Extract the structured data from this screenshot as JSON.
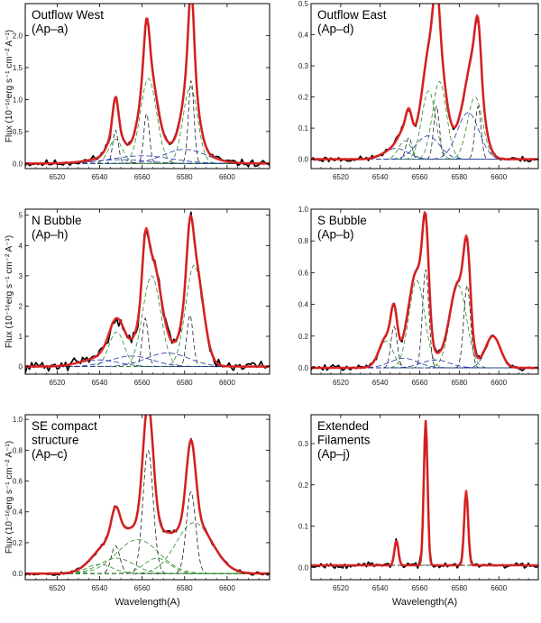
{
  "figure": {
    "xlabel": "Wavelength(A)",
    "ylabel": "Flux (10⁻¹⁶erg s⁻¹ cm⁻² A⁻¹)",
    "colors": {
      "observed": "#000000",
      "total_fit": "#e02020",
      "narrow": "#222222",
      "broad": "#2a8a2a",
      "wide": "#2233aa"
    }
  },
  "chart_data": [
    {
      "type": "line",
      "title_lines": [
        "Outflow West",
        "(Ap–a)"
      ],
      "xlim": [
        6505,
        6620
      ],
      "xticks": [
        6520,
        6540,
        6560,
        6580,
        6600
      ],
      "ylim": [
        -0.08,
        2.5
      ],
      "yticks": [
        0.0,
        0.5,
        1.0,
        1.5,
        2.0
      ],
      "ytick_labels": [
        "0.0",
        "0.5",
        "1.0",
        "1.5",
        "2.0"
      ],
      "show_ylabel": true,
      "show_xlabel": false,
      "noise": 0.015,
      "seed": 11,
      "baseline": 0.0,
      "components": [
        {
          "kind": "narrow",
          "c": 6547.5,
          "a": 0.52,
          "s": 1.3
        },
        {
          "kind": "narrow",
          "c": 6562.1,
          "a": 0.78,
          "s": 1.3
        },
        {
          "kind": "narrow",
          "c": 6583.1,
          "a": 1.3,
          "s": 1.3
        },
        {
          "kind": "broad",
          "c": 6547.5,
          "a": 0.38,
          "s": 3.2
        },
        {
          "kind": "broad",
          "c": 6563.0,
          "a": 1.33,
          "s": 3.8
        },
        {
          "kind": "broad",
          "c": 6582.7,
          "a": 1.2,
          "s": 3.4
        },
        {
          "kind": "wide",
          "c": 6580,
          "a": 0.22,
          "s": 10
        },
        {
          "kind": "wide",
          "c": 6560,
          "a": 0.12,
          "s": 14
        },
        {
          "kind": "wide",
          "c": 6550,
          "a": 0.06,
          "s": 12
        }
      ]
    },
    {
      "type": "line",
      "title_lines": [
        "Outflow East",
        "(Ap–d)"
      ],
      "xlim": [
        6505,
        6620
      ],
      "xticks": [
        6520,
        6540,
        6560,
        6580,
        6600
      ],
      "ylim": [
        -0.03,
        0.5
      ],
      "yticks": [
        0.0,
        0.1,
        0.2,
        0.3,
        0.4,
        0.5
      ],
      "ytick_labels": [
        "0.0",
        "0.1",
        "0.2",
        "0.3",
        "0.4",
        "0.5"
      ],
      "show_ylabel": false,
      "show_xlabel": false,
      "noise": 0.012,
      "seed": 23,
      "baseline": 0.0,
      "components": [
        {
          "kind": "narrow",
          "c": 6554.5,
          "a": 0.07,
          "s": 1.5
        },
        {
          "kind": "narrow",
          "c": 6568.5,
          "a": 0.17,
          "s": 1.5
        },
        {
          "kind": "narrow",
          "c": 6589.5,
          "a": 0.17,
          "s": 1.5
        },
        {
          "kind": "broad",
          "c": 6552.5,
          "a": 0.06,
          "s": 3.2
        },
        {
          "kind": "broad",
          "c": 6564.5,
          "a": 0.22,
          "s": 3.5
        },
        {
          "kind": "broad",
          "c": 6570.0,
          "a": 0.25,
          "s": 3.5
        },
        {
          "kind": "broad",
          "c": 6588.0,
          "a": 0.2,
          "s": 3.8
        },
        {
          "kind": "wide",
          "c": 6584.5,
          "a": 0.15,
          "s": 5.5
        },
        {
          "kind": "wide",
          "c": 6564.0,
          "a": 0.075,
          "s": 6
        },
        {
          "kind": "wide",
          "c": 6548.0,
          "a": 0.035,
          "s": 6
        }
      ]
    },
    {
      "type": "line",
      "title_lines": [
        "N Bubble",
        "(Ap–h)"
      ],
      "xlim": [
        6505,
        6620
      ],
      "xticks": [
        6520,
        6540,
        6560,
        6580,
        6600
      ],
      "ylim": [
        -0.25,
        5.2
      ],
      "yticks": [
        0,
        1,
        2,
        3,
        4,
        5
      ],
      "ytick_labels": [
        "0",
        "1",
        "2",
        "3",
        "4",
        "5"
      ],
      "show_ylabel": true,
      "show_xlabel": false,
      "noise": 0.025,
      "seed": 31,
      "baseline": 0.0,
      "components": [
        {
          "kind": "narrow",
          "c": 6561.5,
          "a": 1.6,
          "s": 1.4
        },
        {
          "kind": "narrow",
          "c": 6582.5,
          "a": 1.7,
          "s": 1.5
        },
        {
          "kind": "broad",
          "c": 6548.0,
          "a": 1.15,
          "s": 3.6
        },
        {
          "kind": "broad",
          "c": 6564.5,
          "a": 3.0,
          "s": 4.2
        },
        {
          "kind": "broad",
          "c": 6584.5,
          "a": 3.35,
          "s": 4.0
        },
        {
          "kind": "wide",
          "c": 6572,
          "a": 0.45,
          "s": 10
        },
        {
          "kind": "wide",
          "c": 6555,
          "a": 0.35,
          "s": 10
        },
        {
          "kind": "wide",
          "c": 6540,
          "a": 0.22,
          "s": 9
        }
      ]
    },
    {
      "type": "line",
      "title_lines": [
        "S Bubble",
        "(Ap–b)"
      ],
      "xlim": [
        6505,
        6620
      ],
      "xticks": [
        6520,
        6540,
        6560,
        6580,
        6600
      ],
      "ylim": [
        -0.04,
        1.0
      ],
      "yticks": [
        0.0,
        0.2,
        0.4,
        0.6,
        0.8,
        1.0
      ],
      "ytick_labels": [
        "0.0",
        "0.2",
        "0.4",
        "0.6",
        "0.8",
        "1.0"
      ],
      "show_ylabel": false,
      "show_xlabel": false,
      "noise": 0.012,
      "seed": 47,
      "baseline": 0.0,
      "components": [
        {
          "kind": "narrow",
          "c": 6547.0,
          "a": 0.26,
          "s": 1.6
        },
        {
          "kind": "narrow",
          "c": 6563.0,
          "a": 0.62,
          "s": 1.6
        },
        {
          "kind": "narrow",
          "c": 6584.0,
          "a": 0.52,
          "s": 1.7
        },
        {
          "kind": "broad",
          "c": 6543.0,
          "a": 0.17,
          "s": 3.5
        },
        {
          "kind": "broad",
          "c": 6558.5,
          "a": 0.55,
          "s": 4.0
        },
        {
          "kind": "broad",
          "c": 6579.5,
          "a": 0.52,
          "s": 4.2
        },
        {
          "kind": "wide",
          "c": 6597,
          "a": 0.2,
          "s": 3.8
        },
        {
          "kind": "wide",
          "c": 6568,
          "a": 0.05,
          "s": 7
        },
        {
          "kind": "wide",
          "c": 6552,
          "a": 0.06,
          "s": 7
        }
      ]
    },
    {
      "type": "line",
      "title_lines": [
        "SE compact",
        "structure",
        "(Ap–c)"
      ],
      "xlim": [
        6505,
        6620
      ],
      "xticks": [
        6520,
        6540,
        6560,
        6580,
        6600
      ],
      "ylim": [
        -0.04,
        1.03
      ],
      "yticks": [
        0.0,
        0.2,
        0.4,
        0.6,
        0.8,
        1.0
      ],
      "ytick_labels": [
        "0.0",
        "0.2",
        "0.4",
        "0.6",
        "0.8",
        "1.0"
      ],
      "show_ylabel": true,
      "show_xlabel": true,
      "noise": 0.008,
      "seed": 53,
      "baseline": 0.0,
      "components": [
        {
          "kind": "narrow",
          "c": 6547.5,
          "a": 0.18,
          "s": 2.0
        },
        {
          "kind": "narrow",
          "c": 6562.8,
          "a": 0.8,
          "s": 2.4
        },
        {
          "kind": "narrow",
          "c": 6583.0,
          "a": 0.53,
          "s": 2.2
        },
        {
          "kind": "broad",
          "c": 6548,
          "a": 0.1,
          "s": 8
        },
        {
          "kind": "broad",
          "c": 6558,
          "a": 0.22,
          "s": 10
        },
        {
          "kind": "broad",
          "c": 6584.5,
          "a": 0.33,
          "s": 8.5
        },
        {
          "kind": "broad",
          "c": 6567,
          "a": 0.1,
          "s": 6
        },
        {
          "kind": "broad",
          "c": 6540,
          "a": 0.06,
          "s": 6
        }
      ]
    },
    {
      "type": "line",
      "title_lines": [
        "Extended",
        "Filaments",
        "(Ap–j)"
      ],
      "xlim": [
        6505,
        6620
      ],
      "xticks": [
        6520,
        6540,
        6560,
        6580,
        6600
      ],
      "ylim": [
        -0.03,
        0.37
      ],
      "yticks": [
        0.0,
        0.1,
        0.2,
        0.3
      ],
      "ytick_labels": [
        "0.0",
        "0.1",
        "0.2",
        "0.3"
      ],
      "show_ylabel": false,
      "show_xlabel": true,
      "noise": 0.012,
      "seed": 67,
      "baseline": 0.005,
      "components": [
        {
          "kind": "narrow",
          "c": 6548.2,
          "a": 0.06,
          "s": 1.0
        },
        {
          "kind": "narrow",
          "c": 6563.0,
          "a": 0.35,
          "s": 0.95
        },
        {
          "kind": "narrow",
          "c": 6583.5,
          "a": 0.18,
          "s": 1.0
        }
      ]
    }
  ]
}
